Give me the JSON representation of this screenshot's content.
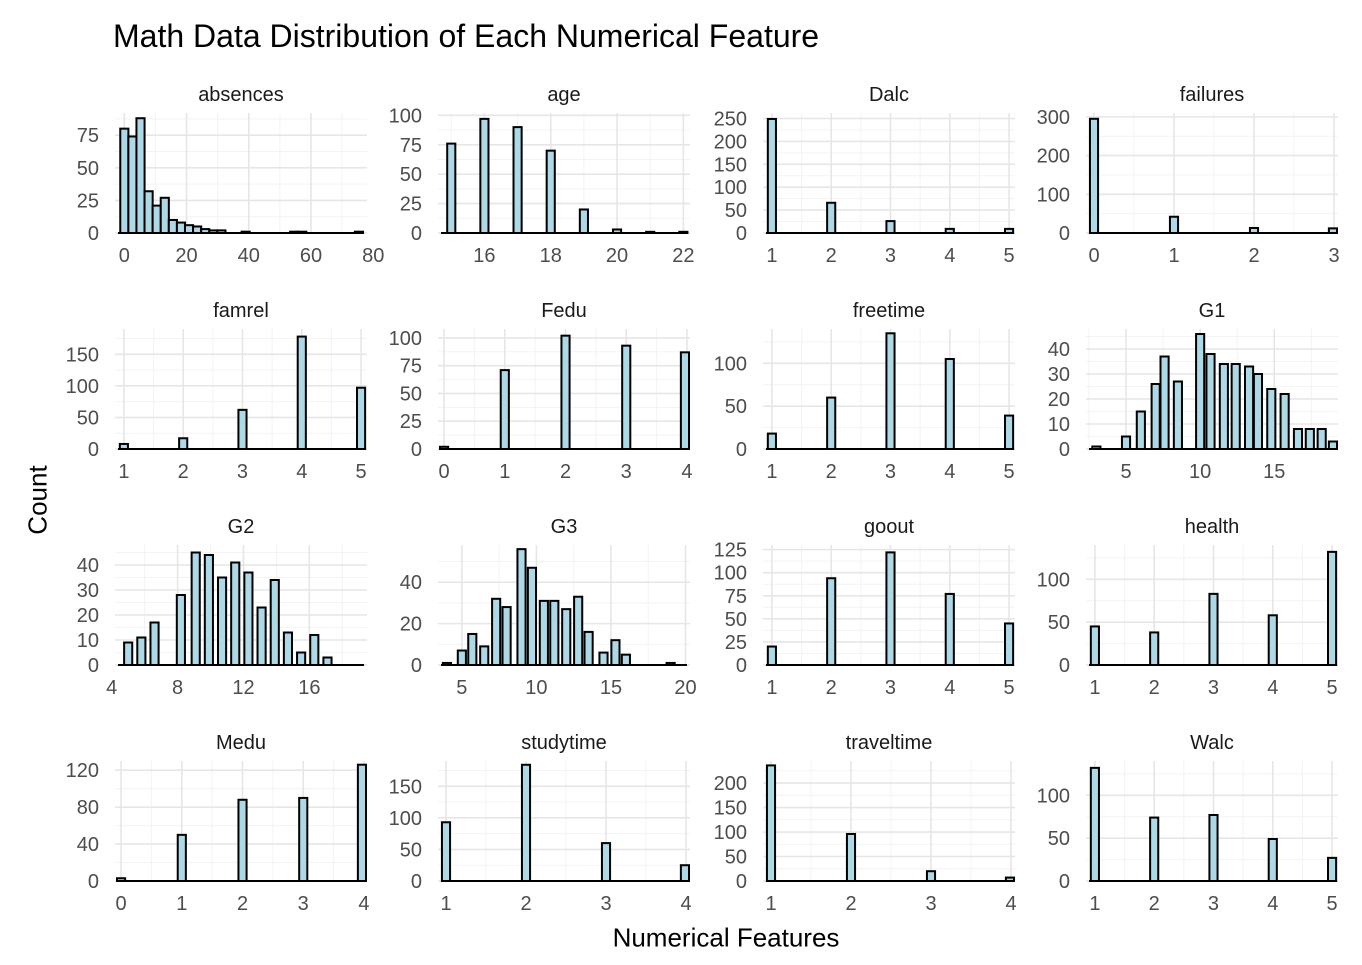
{
  "chart_data": {
    "type": "bar",
    "title": "Math Data Distribution of Each Numerical Feature",
    "xlabel": "Numerical Features",
    "ylabel": "Count",
    "grid": true,
    "legend": "none",
    "bar_fill": "#add8e6",
    "bar_stroke": "#000000",
    "panels": [
      {
        "name": "absences",
        "xlim": [
          -3,
          78
        ],
        "ylim": [
          0,
          92
        ],
        "xticks": [
          0,
          20,
          40,
          60,
          80
        ],
        "yticks": [
          0,
          25,
          50,
          75
        ],
        "bins": [
          [
            0,
            80
          ],
          [
            2.6,
            74
          ],
          [
            5.2,
            88
          ],
          [
            7.8,
            32
          ],
          [
            10.4,
            21
          ],
          [
            13,
            27
          ],
          [
            15.6,
            10
          ],
          [
            18.2,
            8
          ],
          [
            20.8,
            6
          ],
          [
            23.4,
            5
          ],
          [
            26,
            3
          ],
          [
            28.6,
            2
          ],
          [
            31.2,
            2
          ],
          [
            39,
            1
          ],
          [
            54.6,
            1
          ],
          [
            57.2,
            1
          ],
          [
            75.4,
            1
          ]
        ]
      },
      {
        "name": "age",
        "xlim": [
          14.6,
          22.2
        ],
        "ylim": [
          0,
          102
        ],
        "xticks": [
          16,
          18,
          20,
          22
        ],
        "yticks": [
          0,
          25,
          50,
          75,
          100
        ],
        "bins": [
          [
            15,
            76
          ],
          [
            16,
            97
          ],
          [
            17,
            90
          ],
          [
            18,
            70
          ],
          [
            19,
            20
          ],
          [
            20,
            3
          ],
          [
            21,
            1
          ],
          [
            22,
            1
          ]
        ]
      },
      {
        "name": "Dalc",
        "xlim": [
          0.85,
          5.1
        ],
        "ylim": [
          0,
          262
        ],
        "xticks": [
          1,
          2,
          3,
          4,
          5
        ],
        "yticks": [
          0,
          50,
          100,
          150,
          200,
          250
        ],
        "bins": [
          [
            1,
            249
          ],
          [
            2,
            66
          ],
          [
            3,
            26
          ],
          [
            4,
            9
          ],
          [
            5,
            9
          ]
        ]
      },
      {
        "name": "failures",
        "xlim": [
          -0.1,
          3.05
        ],
        "ylim": [
          0,
          310
        ],
        "xticks": [
          0,
          1,
          2,
          3
        ],
        "yticks": [
          0,
          100,
          200,
          300
        ],
        "bins": [
          [
            0,
            295
          ],
          [
            1,
            42
          ],
          [
            2,
            13
          ],
          [
            3,
            12
          ]
        ]
      },
      {
        "name": "famrel",
        "xlim": [
          0.85,
          5.1
        ],
        "ylim": [
          0,
          190
        ],
        "xticks": [
          1,
          2,
          3,
          4,
          5
        ],
        "yticks": [
          0,
          50,
          100,
          150
        ],
        "bins": [
          [
            1,
            8
          ],
          [
            2,
            17
          ],
          [
            3,
            62
          ],
          [
            4,
            178
          ],
          [
            5,
            97
          ]
        ]
      },
      {
        "name": "Fedu",
        "xlim": [
          -0.1,
          4.05
        ],
        "ylim": [
          0,
          108
        ],
        "xticks": [
          0,
          1,
          2,
          3,
          4
        ],
        "yticks": [
          0,
          25,
          50,
          75,
          100
        ],
        "bins": [
          [
            0,
            2
          ],
          [
            1,
            71
          ],
          [
            2,
            102
          ],
          [
            3,
            93
          ],
          [
            4,
            87
          ]
        ]
      },
      {
        "name": "freetime",
        "xlim": [
          0.85,
          5.1
        ],
        "ylim": [
          0,
          140
        ],
        "xticks": [
          1,
          2,
          3,
          4,
          5
        ],
        "yticks": [
          0,
          50,
          100
        ],
        "bins": [
          [
            1,
            18
          ],
          [
            2,
            60
          ],
          [
            3,
            135
          ],
          [
            4,
            105
          ],
          [
            5,
            39
          ]
        ]
      },
      {
        "name": "G1",
        "xlim": [
          2.3,
          19.3
        ],
        "ylim": [
          0,
          48
        ],
        "xticks": [
          5,
          10,
          15
        ],
        "yticks": [
          0,
          10,
          20,
          30,
          40
        ],
        "bins": [
          [
            3,
            1
          ],
          [
            5,
            5
          ],
          [
            6,
            15
          ],
          [
            7,
            26
          ],
          [
            7.6,
            37
          ],
          [
            8.5,
            27
          ],
          [
            10,
            46
          ],
          [
            10.7,
            38
          ],
          [
            11.6,
            34
          ],
          [
            12.4,
            34
          ],
          [
            13.3,
            33
          ],
          [
            13.9,
            30
          ],
          [
            14.8,
            24
          ],
          [
            15.7,
            22
          ],
          [
            16.6,
            8
          ],
          [
            17.4,
            8
          ],
          [
            18.2,
            8
          ],
          [
            19,
            3
          ]
        ]
      },
      {
        "name": "G2",
        "xlim": [
          4.2,
          19.5
        ],
        "ylim": [
          0,
          48
        ],
        "xticks": [
          4,
          8,
          12,
          16
        ],
        "yticks": [
          0,
          10,
          20,
          30,
          40
        ],
        "bins": [
          [
            5,
            9
          ],
          [
            5.8,
            11
          ],
          [
            6.6,
            17
          ],
          [
            8.2,
            28
          ],
          [
            9.1,
            45
          ],
          [
            9.9,
            44
          ],
          [
            10.7,
            35
          ],
          [
            11.5,
            41
          ],
          [
            12.3,
            37
          ],
          [
            13.1,
            23
          ],
          [
            13.9,
            34
          ],
          [
            14.7,
            13
          ],
          [
            15.5,
            5
          ],
          [
            16.3,
            12
          ],
          [
            17.1,
            3
          ]
        ]
      },
      {
        "name": "G3",
        "xlim": [
          3.4,
          20.3
        ],
        "ylim": [
          0,
          58
        ],
        "xticks": [
          5,
          10,
          15,
          20
        ],
        "yticks": [
          0,
          20,
          40
        ],
        "bins": [
          [
            4,
            1
          ],
          [
            5,
            7
          ],
          [
            5.7,
            15
          ],
          [
            6.5,
            9
          ],
          [
            7.3,
            32
          ],
          [
            8,
            28
          ],
          [
            9,
            56
          ],
          [
            9.7,
            47
          ],
          [
            10.5,
            31
          ],
          [
            11.2,
            31
          ],
          [
            12,
            27
          ],
          [
            12.8,
            33
          ],
          [
            13.5,
            16
          ],
          [
            14.5,
            6
          ],
          [
            15.3,
            12
          ],
          [
            16,
            5
          ],
          [
            19,
            1
          ]
        ]
      },
      {
        "name": "goout",
        "xlim": [
          0.85,
          5.1
        ],
        "ylim": [
          0,
          130
        ],
        "xticks": [
          1,
          2,
          3,
          4,
          5
        ],
        "yticks": [
          0,
          25,
          50,
          75,
          100,
          125
        ],
        "bins": [
          [
            1,
            20
          ],
          [
            2,
            94
          ],
          [
            3,
            122
          ],
          [
            4,
            77
          ],
          [
            5,
            45
          ]
        ]
      },
      {
        "name": "health",
        "xlim": [
          0.85,
          5.1
        ],
        "ylim": [
          0,
          140
        ],
        "xticks": [
          1,
          2,
          3,
          4,
          5
        ],
        "yticks": [
          0,
          50,
          100
        ],
        "bins": [
          [
            1,
            45
          ],
          [
            2,
            38
          ],
          [
            3,
            83
          ],
          [
            4,
            58
          ],
          [
            5,
            132
          ]
        ]
      },
      {
        "name": "Medu",
        "xlim": [
          -0.1,
          4.05
        ],
        "ylim": [
          0,
          130
        ],
        "xticks": [
          0,
          1,
          2,
          3,
          4
        ],
        "yticks": [
          0,
          40,
          80,
          120
        ],
        "bins": [
          [
            0,
            3
          ],
          [
            1,
            50
          ],
          [
            2,
            88
          ],
          [
            3,
            90
          ],
          [
            4,
            126
          ]
        ]
      },
      {
        "name": "studytime",
        "xlim": [
          0.9,
          4.05
        ],
        "ylim": [
          0,
          190
        ],
        "xticks": [
          1,
          2,
          3,
          4
        ],
        "yticks": [
          0,
          50,
          100,
          150
        ],
        "bins": [
          [
            1,
            93
          ],
          [
            2,
            184
          ],
          [
            3,
            60
          ],
          [
            4,
            25
          ]
        ]
      },
      {
        "name": "traveltime",
        "xlim": [
          0.9,
          4.05
        ],
        "ylim": [
          0,
          245
        ],
        "xticks": [
          1,
          2,
          3,
          4
        ],
        "yticks": [
          0,
          50,
          100,
          150,
          200
        ],
        "bins": [
          [
            1,
            236
          ],
          [
            2,
            96
          ],
          [
            3,
            20
          ],
          [
            4,
            7
          ]
        ]
      },
      {
        "name": "Walc",
        "xlim": [
          0.85,
          5.1
        ],
        "ylim": [
          0,
          140
        ],
        "xticks": [
          1,
          2,
          3,
          4,
          5
        ],
        "yticks": [
          0,
          50,
          100
        ],
        "bins": [
          [
            1,
            132
          ],
          [
            2,
            74
          ],
          [
            3,
            77
          ],
          [
            4,
            49
          ],
          [
            5,
            27
          ]
        ]
      }
    ]
  }
}
